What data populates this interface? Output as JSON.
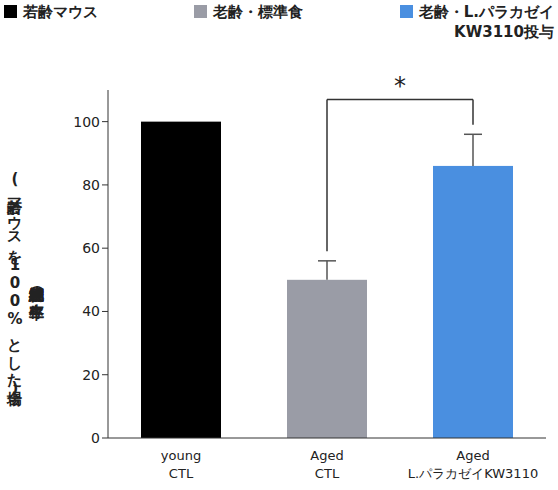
{
  "chart_data": {
    "type": "bar",
    "y_label": "網膜神経細胞の生存率",
    "y_label_sub": "(若齢マウスを100%とした場合)",
    "categories": [
      "young\nCTL",
      "Aged\nCTL",
      "Aged\nL.パラカゼイKW3110"
    ],
    "series": [
      {
        "name": "若齢マウス",
        "color": "#000000",
        "values": [
          100,
          null,
          null
        ],
        "error": [
          null,
          null,
          null
        ]
      },
      {
        "name": "老齢・標準食",
        "color": "#9a9ca6",
        "values": [
          null,
          50,
          null
        ],
        "error": [
          null,
          6,
          null
        ]
      },
      {
        "name": "老齢・L.パラカゼイ\nKW3110投与",
        "color": "#4a8fe0",
        "values": [
          null,
          null,
          86
        ],
        "error": [
          null,
          null,
          10
        ]
      }
    ],
    "ylim": [
      0,
      110
    ],
    "yticks": [
      0,
      20,
      40,
      60,
      80,
      100
    ],
    "grid": false,
    "legend": "top",
    "annotations": [
      {
        "text": "*",
        "from": "Aged\nCTL",
        "to": "Aged\nL.パラカゼイKW3110",
        "y": 107
      }
    ]
  }
}
